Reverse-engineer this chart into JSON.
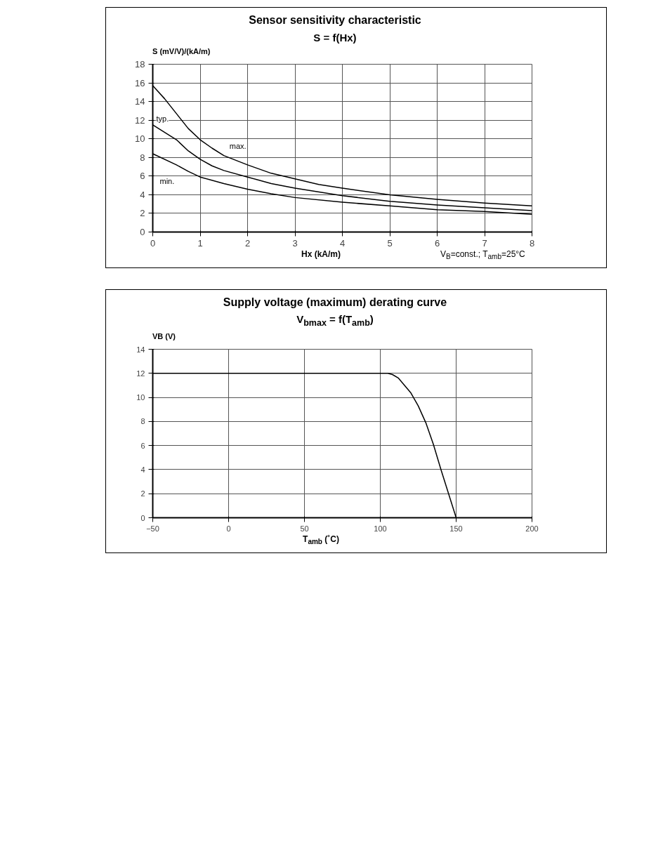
{
  "chart_data": [
    {
      "type": "line",
      "title": "Sensor sensitivity characteristic",
      "subtitle": "S = f(Hx)",
      "xlabel": "Hx (kA/m)",
      "ylabel": "S (mV/V)/(kA/m)",
      "annotations": [
        "V$_{B}$=const.; T$_{amb}$=25°C"
      ],
      "series": [
        {
          "name": "max.",
          "color": "#000000",
          "x": [
            0,
            0.25,
            0.5,
            0.75,
            1,
            1.25,
            1.5,
            2,
            2.5,
            3,
            3.5,
            4,
            5,
            6,
            7,
            8
          ],
          "values": [
            15.7,
            14.3,
            12.7,
            11.1,
            9.9,
            9.0,
            8.2,
            7.2,
            6.3,
            5.7,
            5.1,
            4.7,
            4.0,
            3.5,
            3.1,
            2.8
          ]
        },
        {
          "name": "typ.",
          "color": "#000000",
          "x": [
            0,
            0.5,
            0.75,
            1,
            1.25,
            1.5,
            2,
            2.5,
            3,
            4,
            5,
            6,
            7,
            8
          ],
          "values": [
            11.5,
            9.9,
            8.7,
            7.8,
            7.1,
            6.6,
            5.9,
            5.2,
            4.7,
            3.9,
            3.3,
            2.9,
            2.6,
            2.3
          ]
        },
        {
          "name": "min.",
          "color": "#000000",
          "x": [
            0,
            0.5,
            0.75,
            1,
            1.5,
            2,
            2.5,
            3,
            4,
            5,
            6,
            7,
            8
          ],
          "values": [
            8.4,
            7.2,
            6.5,
            5.9,
            5.2,
            4.6,
            4.1,
            3.7,
            3.2,
            2.8,
            2.4,
            2.2,
            1.9
          ]
        }
      ],
      "xlim": [
        0,
        8
      ],
      "ylim": [
        0,
        18
      ],
      "xticks": [
        0,
        1,
        2,
        3,
        4,
        5,
        6,
        7,
        8
      ],
      "yticks": [
        0,
        2,
        4,
        6,
        8,
        10,
        12,
        14,
        16,
        18
      ],
      "grid": true
    },
    {
      "type": "line",
      "title": "Supply voltage (maximum) derating curve",
      "subtitle": "V$_{bmax}$ = f(T$_{amb}$)",
      "xlabel": "T$_{amb}$ (˚C)",
      "ylabel": "VB (V)",
      "series": [
        {
          "color": "#000000",
          "x": [
            -50,
            100,
            105,
            108,
            112,
            116,
            120,
            125,
            130,
            135,
            140,
            145,
            150
          ],
          "values": [
            12,
            12,
            12,
            11.9,
            11.6,
            11.0,
            10.4,
            9.3,
            7.9,
            6.1,
            4.0,
            2.0,
            0
          ]
        }
      ],
      "xlim": [
        -50,
        200
      ],
      "ylim": [
        0,
        14
      ],
      "xticks": [
        -50,
        0,
        50,
        100,
        150,
        200
      ],
      "yticks": [
        0,
        2,
        4,
        6,
        8,
        10,
        12,
        14
      ],
      "grid": true
    }
  ]
}
